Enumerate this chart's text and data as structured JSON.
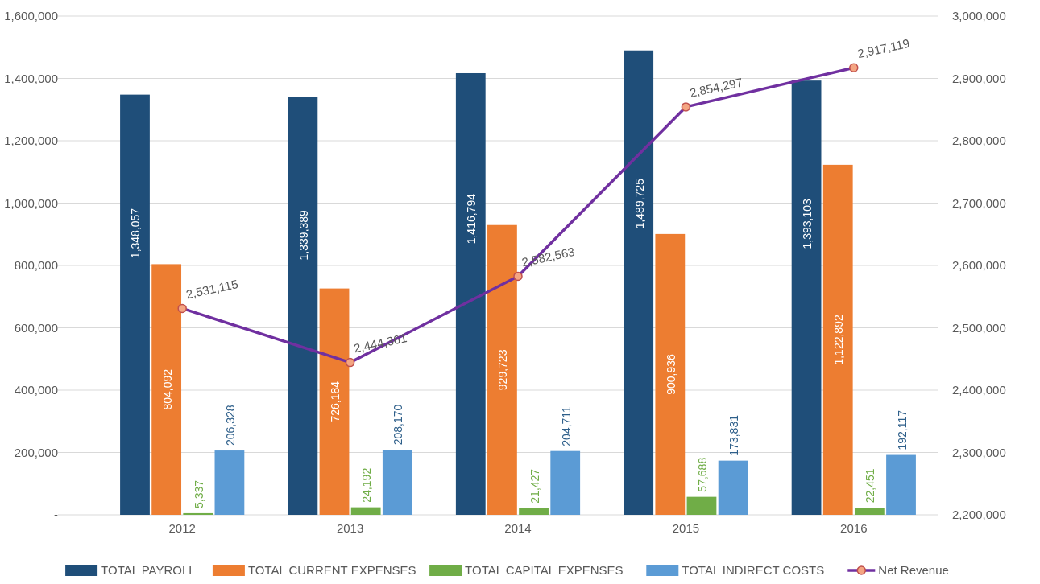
{
  "chart_data": {
    "type": "bar",
    "categories": [
      "2012",
      "2013",
      "2014",
      "2015",
      "2016"
    ],
    "series": [
      {
        "name": "TOTAL PAYROLL",
        "color": "#1f4e79",
        "values": [
          1348057,
          1339389,
          1416794,
          1489725,
          1393103
        ],
        "value_labels": [
          "1,348,057",
          "1,339,389",
          "1,416,794",
          "1,489,725",
          "1,393,103"
        ]
      },
      {
        "name": "TOTAL CURRENT EXPENSES",
        "color": "#ed7d31",
        "values": [
          804092,
          726184,
          929723,
          900936,
          1122892
        ],
        "value_labels": [
          "804,092",
          "726,184",
          "929,723",
          "900,936",
          "1,122,892"
        ]
      },
      {
        "name": "TOTAL CAPITAL EXPENSES",
        "color": "#70ad47",
        "values": [
          5337,
          24192,
          21427,
          57688,
          22451
        ],
        "value_labels": [
          "5,337",
          "24,192",
          "21,427",
          "57,688",
          "22,451"
        ]
      },
      {
        "name": "TOTAL INDIRECT COSTS",
        "color": "#5b9bd5",
        "values": [
          206328,
          208170,
          204711,
          173831,
          192117
        ],
        "value_labels": [
          "206,328",
          "208,170",
          "204,711",
          "173,831",
          "192,117"
        ]
      },
      {
        "name": "Net Revenue",
        "type": "line",
        "axis": "y2",
        "color": "#7030a0",
        "marker": "circle",
        "values": [
          2531115,
          2444361,
          2582563,
          2854297,
          2917119
        ],
        "value_labels": [
          "2,531,115",
          "2,444,361",
          "2,582,563",
          "2,854,297",
          "2,917,119"
        ]
      }
    ],
    "ylim": [
      0,
      1600000
    ],
    "yticks": [
      {
        "value": 0,
        "label": "-"
      },
      {
        "value": 200000,
        "label": "200,000"
      },
      {
        "value": 400000,
        "label": "400,000"
      },
      {
        "value": 600000,
        "label": "600,000"
      },
      {
        "value": 800000,
        "label": "800,000"
      },
      {
        "value": 1000000,
        "label": "1,000,000"
      },
      {
        "value": 1200000,
        "label": "1,200,000"
      },
      {
        "value": 1400000,
        "label": "1,400,000"
      },
      {
        "value": 1600000,
        "label": "1,600,000"
      }
    ],
    "y2lim": [
      2200000,
      3000000
    ],
    "y2ticks": [
      {
        "value": 2200000,
        "label": "2,200,000"
      },
      {
        "value": 2300000,
        "label": "2,300,000"
      },
      {
        "value": 2400000,
        "label": "2,400,000"
      },
      {
        "value": 2500000,
        "label": "2,500,000"
      },
      {
        "value": 2600000,
        "label": "2,600,000"
      },
      {
        "value": 2700000,
        "label": "2,700,000"
      },
      {
        "value": 2800000,
        "label": "2,800,000"
      },
      {
        "value": 2900000,
        "label": "2,900,000"
      },
      {
        "value": 3000000,
        "label": "3,000,000"
      }
    ],
    "grid": "y",
    "legend": "bottom"
  }
}
